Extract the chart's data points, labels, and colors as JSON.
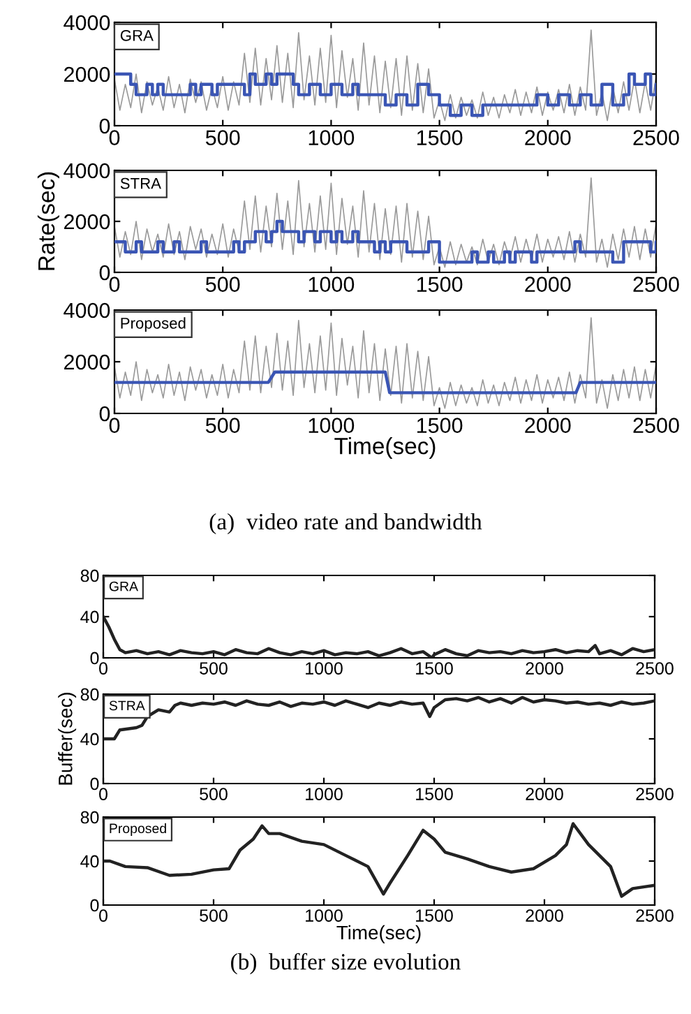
{
  "chart_data": [
    {
      "type": "line",
      "annotations": [
        "GRA"
      ],
      "xlim": [
        0,
        2500
      ],
      "ylim": [
        0,
        4000
      ],
      "xticks": [
        0,
        500,
        1000,
        1500,
        2000,
        2500
      ],
      "yticks": [
        0,
        2000,
        4000
      ],
      "series": [
        {
          "color": "#9a9a9a",
          "x": [
            0,
            25,
            50,
            75,
            100,
            125,
            150,
            175,
            200,
            225,
            250,
            275,
            300,
            325,
            350,
            375,
            400,
            425,
            450,
            475,
            500,
            525,
            550,
            575,
            600,
            625,
            650,
            675,
            700,
            725,
            750,
            775,
            800,
            825,
            850,
            875,
            900,
            925,
            950,
            975,
            1000,
            1025,
            1050,
            1075,
            1100,
            1125,
            1150,
            1175,
            1200,
            1225,
            1250,
            1275,
            1300,
            1325,
            1350,
            1375,
            1400,
            1425,
            1450,
            1475,
            1500,
            1525,
            1550,
            1575,
            1600,
            1625,
            1650,
            1675,
            1700,
            1725,
            1750,
            1775,
            1800,
            1825,
            1850,
            1875,
            1900,
            1925,
            1950,
            1975,
            2000,
            2025,
            2050,
            2075,
            2100,
            2125,
            2150,
            2175,
            2200,
            2225,
            2250,
            2275,
            2300,
            2325,
            2350,
            2375,
            2400,
            2425,
            2450,
            2475,
            2500
          ],
          "values": [
            1800,
            600,
            1600,
            700,
            2000,
            500,
            1700,
            800,
            1500,
            600,
            1900,
            700,
            1600,
            500,
            1800,
            900,
            1700,
            600,
            1500,
            700,
            1900,
            600,
            1700,
            800,
            2800,
            900,
            3000,
            800,
            2600,
            1000,
            3100,
            900,
            2800,
            700,
            3600,
            1000,
            2700,
            800,
            3000,
            900,
            3500,
            700,
            2900,
            1100,
            2600,
            600,
            3200,
            800,
            2700,
            500,
            2500,
            700,
            2600,
            400,
            2700,
            600,
            2400,
            500,
            2200,
            300,
            1000,
            200,
            1200,
            300,
            1100,
            400,
            1000,
            300,
            1300,
            400,
            1100,
            300,
            1200,
            500,
            1400,
            400,
            1300,
            500,
            1500,
            400,
            1300,
            600,
            1400,
            500,
            1600,
            400,
            1500,
            600,
            3700,
            400,
            1300,
            200,
            1500,
            500,
            1700,
            600,
            1800,
            500,
            1700,
            600,
            1900
          ]
        },
        {
          "type": "step",
          "color": "#3a55b4",
          "x": [
            0,
            75,
            100,
            150,
            175,
            200,
            225,
            350,
            375,
            400,
            450,
            475,
            600,
            625,
            650,
            700,
            725,
            750,
            825,
            850,
            900,
            950,
            1000,
            1050,
            1100,
            1125,
            1175,
            1250,
            1300,
            1350,
            1400,
            1450,
            1500,
            1550,
            1600,
            1650,
            1700,
            1750,
            1900,
            1950,
            2000,
            2050,
            2100,
            2150,
            2200,
            2250,
            2300,
            2350,
            2375,
            2400,
            2450,
            2475,
            2500
          ],
          "values": [
            2000,
            1600,
            1200,
            1600,
            1200,
            1600,
            1200,
            1600,
            1200,
            1600,
            1200,
            1600,
            1200,
            2000,
            1600,
            2000,
            1600,
            2000,
            1600,
            1200,
            1600,
            1200,
            1600,
            1200,
            1600,
            1200,
            1200,
            800,
            1200,
            800,
            1600,
            1200,
            800,
            400,
            800,
            400,
            800,
            800,
            800,
            1200,
            800,
            1200,
            800,
            1200,
            800,
            1600,
            800,
            1200,
            2000,
            1600,
            2000,
            1200,
            1600
          ]
        }
      ]
    },
    {
      "type": "line",
      "ylabel": "Rate(sec)",
      "annotations": [
        "STRA"
      ],
      "xlim": [
        0,
        2500
      ],
      "ylim": [
        0,
        4000
      ],
      "xticks": [
        0,
        500,
        1000,
        1500,
        2000,
        2500
      ],
      "yticks": [
        0,
        2000,
        4000
      ],
      "series": [
        {
          "color": "#9a9a9a",
          "x": [
            0,
            25,
            50,
            75,
            100,
            125,
            150,
            175,
            200,
            225,
            250,
            275,
            300,
            325,
            350,
            375,
            400,
            425,
            450,
            475,
            500,
            525,
            550,
            575,
            600,
            625,
            650,
            675,
            700,
            725,
            750,
            775,
            800,
            825,
            850,
            875,
            900,
            925,
            950,
            975,
            1000,
            1025,
            1050,
            1075,
            1100,
            1125,
            1150,
            1175,
            1200,
            1225,
            1250,
            1275,
            1300,
            1325,
            1350,
            1375,
            1400,
            1425,
            1450,
            1475,
            1500,
            1525,
            1550,
            1575,
            1600,
            1625,
            1650,
            1675,
            1700,
            1725,
            1750,
            1775,
            1800,
            1825,
            1850,
            1875,
            1900,
            1925,
            1950,
            1975,
            2000,
            2025,
            2050,
            2075,
            2100,
            2125,
            2150,
            2175,
            2200,
            2225,
            2250,
            2275,
            2300,
            2325,
            2350,
            2375,
            2400,
            2425,
            2450,
            2475,
            2500
          ],
          "values": [
            1800,
            600,
            1600,
            700,
            2000,
            500,
            1700,
            800,
            1500,
            600,
            1900,
            700,
            1600,
            500,
            1800,
            900,
            1700,
            600,
            1500,
            700,
            1900,
            600,
            1700,
            800,
            2800,
            900,
            3000,
            800,
            2600,
            1000,
            3100,
            900,
            2800,
            700,
            3600,
            1000,
            2700,
            800,
            3000,
            900,
            3500,
            700,
            2900,
            1100,
            2600,
            600,
            3200,
            800,
            2700,
            500,
            2500,
            700,
            2600,
            400,
            2700,
            600,
            2400,
            500,
            2200,
            300,
            1000,
            200,
            1200,
            300,
            1100,
            400,
            1000,
            300,
            1300,
            400,
            1100,
            300,
            1200,
            500,
            1400,
            400,
            1300,
            500,
            1500,
            400,
            1300,
            600,
            1400,
            500,
            1600,
            400,
            1500,
            600,
            3700,
            400,
            1300,
            200,
            1500,
            500,
            1700,
            600,
            1800,
            500,
            1700,
            600,
            1900
          ]
        },
        {
          "type": "step",
          "color": "#3a55b4",
          "x": [
            0,
            50,
            100,
            125,
            200,
            225,
            275,
            300,
            400,
            425,
            550,
            575,
            600,
            650,
            700,
            725,
            750,
            775,
            850,
            875,
            925,
            950,
            1000,
            1025,
            1050,
            1100,
            1125,
            1200,
            1225,
            1250,
            1275,
            1350,
            1450,
            1500,
            1650,
            1675,
            1725,
            1750,
            1800,
            1825,
            1850,
            1925,
            1950,
            2100,
            2125,
            2150,
            2275,
            2300,
            2350,
            2475,
            2500
          ],
          "values": [
            1200,
            800,
            1200,
            800,
            1200,
            800,
            1200,
            800,
            1200,
            800,
            1200,
            800,
            1200,
            1600,
            1200,
            1600,
            2000,
            1600,
            1200,
            1600,
            1200,
            1600,
            1200,
            1600,
            1200,
            1600,
            1200,
            800,
            1200,
            800,
            1200,
            800,
            1200,
            400,
            800,
            400,
            800,
            400,
            800,
            400,
            800,
            400,
            800,
            800,
            1200,
            800,
            800,
            400,
            1200,
            800,
            1200
          ]
        }
      ]
    },
    {
      "type": "line",
      "xlabel": "Time(sec)",
      "annotations": [
        "Proposed",
        "(a)  video rate and bandwidth"
      ],
      "xlim": [
        0,
        2500
      ],
      "ylim": [
        0,
        4000
      ],
      "xticks": [
        0,
        500,
        1000,
        1500,
        2000,
        2500
      ],
      "yticks": [
        0,
        2000,
        4000
      ],
      "series": [
        {
          "color": "#9a9a9a",
          "x": [
            0,
            25,
            50,
            75,
            100,
            125,
            150,
            175,
            200,
            225,
            250,
            275,
            300,
            325,
            350,
            375,
            400,
            425,
            450,
            475,
            500,
            525,
            550,
            575,
            600,
            625,
            650,
            675,
            700,
            725,
            750,
            775,
            800,
            825,
            850,
            875,
            900,
            925,
            950,
            975,
            1000,
            1025,
            1050,
            1075,
            1100,
            1125,
            1150,
            1175,
            1200,
            1225,
            1250,
            1275,
            1300,
            1325,
            1350,
            1375,
            1400,
            1425,
            1450,
            1475,
            1500,
            1525,
            1550,
            1575,
            1600,
            1625,
            1650,
            1675,
            1700,
            1725,
            1750,
            1775,
            1800,
            1825,
            1850,
            1875,
            1900,
            1925,
            1950,
            1975,
            2000,
            2025,
            2050,
            2075,
            2100,
            2125,
            2150,
            2175,
            2200,
            2225,
            2250,
            2275,
            2300,
            2325,
            2350,
            2375,
            2400,
            2425,
            2450,
            2475,
            2500
          ],
          "values": [
            1800,
            600,
            1600,
            700,
            2000,
            500,
            1700,
            800,
            1500,
            600,
            1900,
            700,
            1600,
            500,
            1800,
            900,
            1700,
            600,
            1500,
            700,
            1900,
            600,
            1700,
            800,
            2800,
            900,
            3000,
            800,
            2600,
            1000,
            3100,
            900,
            2800,
            700,
            3600,
            1000,
            2700,
            800,
            3000,
            900,
            3500,
            700,
            2900,
            1100,
            2600,
            600,
            3200,
            800,
            2700,
            500,
            2500,
            700,
            2600,
            400,
            2700,
            600,
            2400,
            500,
            2200,
            300,
            1000,
            200,
            1200,
            300,
            1100,
            400,
            1000,
            300,
            1300,
            400,
            1100,
            300,
            1200,
            500,
            1400,
            400,
            1300,
            500,
            1500,
            400,
            1300,
            600,
            1400,
            500,
            1600,
            400,
            1500,
            600,
            3700,
            400,
            1300,
            200,
            1500,
            500,
            1700,
            600,
            1800,
            500,
            1700,
            600,
            1900
          ]
        },
        {
          "type": "line",
          "color": "#3a55b4",
          "x": [
            0,
            710,
            740,
            1250,
            1270,
            2130,
            2150,
            2500
          ],
          "values": [
            1200,
            1200,
            1600,
            1600,
            800,
            800,
            1200,
            1200
          ]
        }
      ]
    },
    {
      "type": "line",
      "annotations": [
        "GRA"
      ],
      "xlim": [
        0,
        2500
      ],
      "ylim": [
        0,
        80
      ],
      "xticks": [
        0,
        500,
        1000,
        1500,
        2000,
        2500
      ],
      "yticks": [
        0,
        40,
        80
      ],
      "series": [
        {
          "color": "#222222",
          "x": [
            0,
            25,
            50,
            75,
            100,
            150,
            200,
            250,
            300,
            350,
            400,
            450,
            500,
            550,
            600,
            650,
            700,
            750,
            800,
            850,
            900,
            950,
            1000,
            1050,
            1100,
            1150,
            1200,
            1250,
            1300,
            1350,
            1400,
            1450,
            1490,
            1500,
            1550,
            1600,
            1650,
            1700,
            1750,
            1800,
            1850,
            1900,
            1950,
            2000,
            2050,
            2100,
            2150,
            2200,
            2230,
            2250,
            2300,
            2350,
            2400,
            2450,
            2500
          ],
          "values": [
            40,
            30,
            18,
            8,
            5,
            7,
            4,
            6,
            3,
            7,
            5,
            4,
            6,
            3,
            8,
            5,
            4,
            9,
            5,
            3,
            6,
            4,
            7,
            3,
            5,
            4,
            6,
            2,
            5,
            9,
            4,
            6,
            0,
            3,
            8,
            4,
            2,
            7,
            5,
            6,
            4,
            7,
            5,
            6,
            8,
            5,
            7,
            6,
            12,
            4,
            7,
            3,
            9,
            6,
            8
          ]
        }
      ]
    },
    {
      "type": "line",
      "ylabel": "Buffer(sec)",
      "annotations": [
        "STRA"
      ],
      "xlim": [
        0,
        2500
      ],
      "ylim": [
        0,
        80
      ],
      "xticks": [
        0,
        500,
        1000,
        1500,
        2000,
        2500
      ],
      "yticks": [
        0,
        40,
        80
      ],
      "series": [
        {
          "color": "#222222",
          "x": [
            0,
            50,
            75,
            150,
            175,
            200,
            250,
            300,
            325,
            350,
            400,
            450,
            500,
            550,
            600,
            650,
            700,
            750,
            800,
            850,
            900,
            950,
            1000,
            1050,
            1100,
            1150,
            1200,
            1250,
            1300,
            1350,
            1400,
            1450,
            1480,
            1500,
            1550,
            1600,
            1650,
            1700,
            1750,
            1800,
            1850,
            1900,
            1950,
            2000,
            2050,
            2100,
            2150,
            2200,
            2250,
            2300,
            2350,
            2400,
            2450,
            2500
          ],
          "values": [
            40,
            40,
            48,
            50,
            52,
            60,
            66,
            64,
            70,
            72,
            70,
            72,
            71,
            73,
            70,
            74,
            71,
            70,
            73,
            69,
            72,
            71,
            73,
            70,
            74,
            71,
            68,
            72,
            70,
            73,
            71,
            72,
            60,
            68,
            75,
            76,
            74,
            77,
            73,
            76,
            72,
            77,
            73,
            75,
            74,
            72,
            73,
            71,
            72,
            70,
            73,
            71,
            72,
            74
          ]
        }
      ]
    },
    {
      "type": "line",
      "xlabel": "Time(sec)",
      "annotations": [
        "Proposed",
        "(b)  buffer size evolution"
      ],
      "xlim": [
        0,
        2500
      ],
      "ylim": [
        0,
        80
      ],
      "xticks": [
        0,
        500,
        1000,
        1500,
        2000,
        2500
      ],
      "yticks": [
        0,
        40,
        80
      ],
      "series": [
        {
          "color": "#222222",
          "x": [
            0,
            30,
            100,
            200,
            300,
            400,
            500,
            570,
            620,
            680,
            720,
            750,
            800,
            900,
            1000,
            1100,
            1200,
            1270,
            1300,
            1380,
            1450,
            1500,
            1550,
            1650,
            1750,
            1850,
            1950,
            2050,
            2100,
            2130,
            2200,
            2300,
            2350,
            2400,
            2500
          ],
          "values": [
            40,
            40,
            35,
            34,
            27,
            28,
            32,
            33,
            50,
            60,
            72,
            65,
            65,
            58,
            55,
            45,
            35,
            10,
            20,
            45,
            68,
            60,
            48,
            42,
            35,
            30,
            33,
            45,
            55,
            74,
            55,
            35,
            8,
            15,
            18
          ]
        }
      ]
    }
  ]
}
